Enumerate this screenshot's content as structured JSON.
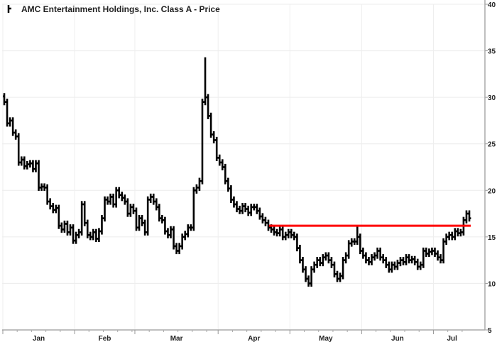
{
  "chart_data": {
    "type": "bar",
    "subtype": "price-bars",
    "title": "AMC Entertainment Holdings, Inc. Class A - Price",
    "legend_icon": "price-bar-icon",
    "ylim": [
      5,
      40
    ],
    "yticks": [
      5,
      10,
      15,
      20,
      25,
      30,
      35,
      40
    ],
    "months": [
      "Jan",
      "Feb",
      "Mar",
      "Apr",
      "May",
      "Jun",
      "Jul"
    ],
    "month_day_counts": [
      25,
      21,
      29,
      25,
      25,
      25,
      13
    ],
    "grid": true,
    "line_color": "#000000",
    "resistance_color": "#ff0000",
    "resistance_level": 16.2,
    "resistance_start_index": 93,
    "high_overrides": {
      "70": 34.3,
      "123": 16.2
    },
    "close": [
      29.5,
      27.2,
      27.5,
      26.2,
      25.8,
      23,
      23.3,
      22.6,
      22.8,
      22.9,
      22.3,
      22.9,
      20.3,
      20.4,
      20.3,
      18.8,
      18.3,
      17.9,
      18.1,
      16.2,
      15.8,
      16.4,
      15.5,
      16,
      14.6,
      15.2,
      15.5,
      18.5,
      16.5,
      15.2,
      15,
      15.5,
      14.8,
      15.6,
      17,
      19,
      18.8,
      19.3,
      18.5,
      20,
      19.5,
      19.2,
      18.8,
      17.5,
      18.2,
      17.8,
      16,
      17,
      16.5,
      15.5,
      19,
      19.3,
      18.8,
      18.2,
      17,
      16.8,
      15.6,
      15.2,
      15.8,
      14,
      13.5,
      14,
      15,
      15.3,
      16,
      16,
      20,
      20.3,
      21,
      29.5,
      30,
      28,
      26,
      25.4,
      23.5,
      23,
      22.5,
      21,
      20.2,
      19,
      18.5,
      18,
      17.8,
      18.3,
      18,
      17.6,
      18.2,
      18.2,
      17.8,
      17.2,
      16.8,
      16.5,
      16,
      15.8,
      15.5,
      15.4,
      15.8,
      15,
      15.2,
      15.5,
      15.2,
      15,
      13.8,
      12.5,
      11.5,
      10.5,
      10,
      11.5,
      12,
      12.5,
      12.2,
      12.8,
      13,
      12.5,
      12,
      11,
      10.5,
      10.8,
      12.5,
      13,
      14.3,
      14.5,
      14.5,
      15,
      13.5,
      13,
      12.5,
      12.3,
      12.8,
      13,
      13.5,
      12.8,
      12.5,
      12,
      11.5,
      12,
      11.8,
      12.2,
      12.5,
      12.3,
      12.8,
      12.5,
      12.6,
      12.3,
      11.8,
      12,
      13.5,
      13.2,
      13.4,
      13.5,
      13.2,
      12.8,
      12.5,
      14.5,
      15,
      15.2,
      15,
      15.6,
      15.4,
      15.5,
      16.8,
      17.5,
      17.0
    ]
  }
}
